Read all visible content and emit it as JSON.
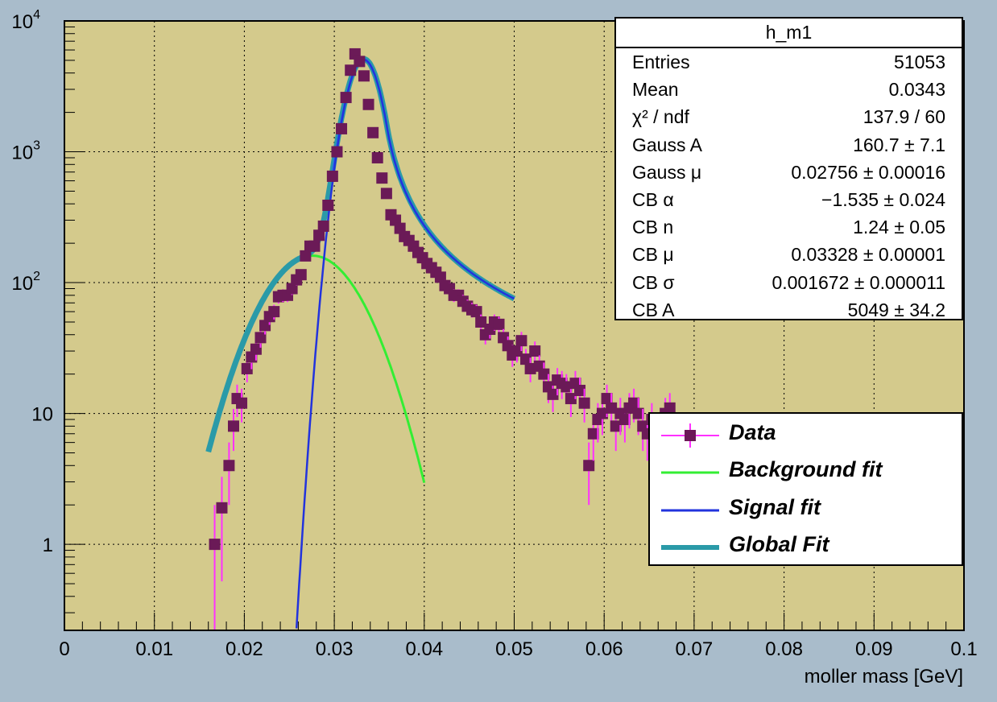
{
  "chart_data": {
    "type": "scatter",
    "title": "",
    "xlabel": "moller mass [GeV]",
    "ylabel": "",
    "xlim": [
      0,
      0.1
    ],
    "ylim": [
      0.22,
      10000
    ],
    "yscale": "log",
    "grid": true,
    "x_ticks": [
      "0",
      "0.01",
      "0.02",
      "0.03",
      "0.04",
      "0.05",
      "0.06",
      "0.07",
      "0.08",
      "0.09",
      "0.1"
    ],
    "y_ticks": [
      {
        "value": 1,
        "label": "1"
      },
      {
        "value": 10,
        "label": "10"
      },
      {
        "value": 100,
        "label": "10",
        "exp": "2"
      },
      {
        "value": 1000,
        "label": "10",
        "exp": "3"
      },
      {
        "value": 10000,
        "label": "10",
        "exp": "4"
      }
    ],
    "colors": {
      "plot_bg": "#d4ca8c",
      "frame_bg": "#a9bccb",
      "data": "#6b1a57",
      "error_bar": "#ff30ff",
      "background_fit": "#33ee33",
      "signal_fit": "#2233dd",
      "global_fit": "#2a9aa8"
    },
    "series": [
      {
        "name": "Data",
        "kind": "points",
        "x": [
          0.0167,
          0.0175,
          0.0183,
          0.0188,
          0.0192,
          0.0197,
          0.0203,
          0.0208,
          0.0213,
          0.0218,
          0.0223,
          0.0228,
          0.0233,
          0.0238,
          0.0243,
          0.0248,
          0.0253,
          0.0258,
          0.0263,
          0.0268,
          0.0273,
          0.0278,
          0.0283,
          0.0288,
          0.0293,
          0.0298,
          0.0303,
          0.0308,
          0.0313,
          0.0318,
          0.0323,
          0.0328,
          0.0333,
          0.0338,
          0.0343,
          0.0348,
          0.0353,
          0.0358,
          0.0363,
          0.0368,
          0.0373,
          0.0378,
          0.0383,
          0.0388,
          0.0393,
          0.0398,
          0.0403,
          0.0408,
          0.0413,
          0.0418,
          0.0423,
          0.0428,
          0.0433,
          0.0438,
          0.0443,
          0.0448,
          0.0453,
          0.0458,
          0.0463,
          0.0468,
          0.0473,
          0.0478,
          0.0483,
          0.0488,
          0.0493,
          0.0498,
          0.0503,
          0.0508,
          0.0513,
          0.0518,
          0.0523,
          0.0528,
          0.0533,
          0.0538,
          0.0543,
          0.0548,
          0.0553,
          0.0558,
          0.0563,
          0.0568,
          0.0573,
          0.0578,
          0.0583,
          0.0588,
          0.0593,
          0.0598,
          0.0603,
          0.0608,
          0.0613,
          0.0618,
          0.0623,
          0.0628,
          0.0633,
          0.0638,
          0.0643,
          0.0648,
          0.0653,
          0.0658,
          0.0663,
          0.0668,
          0.0673
        ],
        "y": [
          1.0,
          1.9,
          4.0,
          8.0,
          13,
          12,
          22,
          27,
          31,
          38,
          47,
          55,
          60,
          78,
          80,
          80,
          90,
          105,
          115,
          160,
          190,
          190,
          230,
          270,
          390,
          650,
          1000,
          1500,
          2600,
          4200,
          5600,
          4900,
          3800,
          2300,
          1400,
          900,
          630,
          480,
          330,
          300,
          260,
          225,
          210,
          190,
          170,
          155,
          140,
          130,
          120,
          110,
          95,
          90,
          80,
          80,
          72,
          66,
          62,
          60,
          50,
          40,
          44,
          50,
          48,
          38,
          33,
          28,
          30,
          36,
          26,
          22,
          30,
          23,
          20,
          16,
          14,
          18,
          17,
          16,
          13,
          17,
          15,
          12,
          4.0,
          7.0,
          9.0,
          10,
          13,
          11,
          8.0,
          10,
          9.0,
          11,
          12,
          10,
          8.0,
          7.0,
          9.0,
          6.0,
          8.0,
          10,
          11
        ]
      },
      {
        "name": "Background fit",
        "kind": "line"
      },
      {
        "name": "Signal fit",
        "kind": "line"
      },
      {
        "name": "Global Fit",
        "kind": "line"
      }
    ]
  },
  "stats_box": {
    "title": "h_m1",
    "rows": [
      {
        "key": "Entries",
        "value": "51053"
      },
      {
        "key": "Mean",
        "value": "0.0343"
      },
      {
        "key": "χ² / ndf",
        "value": "137.9 / 60"
      },
      {
        "key": "Gauss A",
        "value": "160.7 ± 7.1"
      },
      {
        "key": "Gauss μ",
        "value": "0.02756 ± 0.00016"
      },
      {
        "key": "CB α",
        "value": "−1.535 ± 0.024"
      },
      {
        "key": "CB n",
        "value": "1.24 ± 0.05"
      },
      {
        "key": "CB μ",
        "value": "0.03328 ± 0.00001"
      },
      {
        "key": "CB σ",
        "value": "0.001672 ± 0.000011"
      },
      {
        "key": "CB A",
        "value": "5049 ± 34.2"
      }
    ]
  },
  "legend": [
    {
      "label": "Data",
      "symbol": "marker"
    },
    {
      "label": "Background fit",
      "symbol": "line-green"
    },
    {
      "label": "Signal fit",
      "symbol": "line-blue"
    },
    {
      "label": "Global Fit",
      "symbol": "line-teal"
    }
  ]
}
